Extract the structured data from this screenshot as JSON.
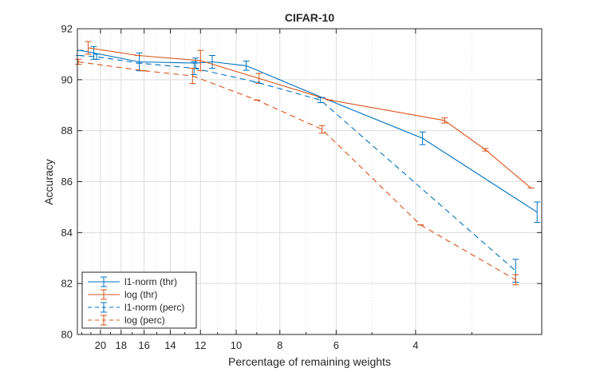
{
  "chart_data": {
    "type": "line",
    "title": "CIFAR-10",
    "xlabel": "Percentage of remaining weights",
    "ylabel": "Accuracy",
    "x_scale": "log",
    "x_reversed": true,
    "xlim": [
      2.1,
      22.5
    ],
    "ylim": [
      80,
      92
    ],
    "x_ticks": [
      20,
      18,
      16,
      14,
      12,
      10,
      8,
      6,
      4
    ],
    "x_tick_labels": [
      "20",
      "18",
      "16",
      "14",
      "12",
      "10",
      "8",
      "6",
      "4"
    ],
    "x_minor_ticks": [
      22,
      21,
      19,
      17,
      15,
      13,
      11,
      9,
      7,
      5,
      3
    ],
    "y_ticks": [
      80,
      82,
      84,
      86,
      88,
      90,
      92
    ],
    "y_tick_labels": [
      "80",
      "82",
      "84",
      "86",
      "88",
      "90",
      "92"
    ],
    "grid": true,
    "legend_position": "bottom-left",
    "series": [
      {
        "name": "l1-norm (thr)",
        "color": "#0072BD",
        "dash": "solid",
        "points": [
          {
            "x": 22.2,
            "y": 91.15,
            "err": 0.0
          },
          {
            "x": 20.7,
            "y": 91.05,
            "err": 0.25
          },
          {
            "x": 16.4,
            "y": 90.7,
            "err": 0.35
          },
          {
            "x": 12.3,
            "y": 90.65,
            "err": 0.2
          },
          {
            "x": 11.3,
            "y": 90.7,
            "err": 0.25
          },
          {
            "x": 9.5,
            "y": 90.55,
            "err": 0.18
          },
          {
            "x": 6.45,
            "y": 89.3,
            "err": 0.0
          },
          {
            "x": 3.86,
            "y": 87.7,
            "err": 0.25
          },
          {
            "x": 2.15,
            "y": 84.8,
            "err": 0.4
          }
        ]
      },
      {
        "name": "log (thr)",
        "color": "#D95319",
        "dash": "solid",
        "points": [
          {
            "x": 21.3,
            "y": 91.25,
            "err": 0.25
          },
          {
            "x": 16.5,
            "y": 90.95,
            "err": 0.0
          },
          {
            "x": 12.0,
            "y": 90.75,
            "err": 0.4
          },
          {
            "x": 8.9,
            "y": 90.05,
            "err": 0.2
          },
          {
            "x": 6.2,
            "y": 89.2,
            "err": 0.0
          },
          {
            "x": 3.45,
            "y": 88.4,
            "err": 0.1
          },
          {
            "x": 2.8,
            "y": 87.25,
            "err": 0.05
          },
          {
            "x": 2.22,
            "y": 85.75,
            "err": 0.0
          }
        ]
      },
      {
        "name": "l1-norm (perc)",
        "color": "#0072BD",
        "dash": "dashed",
        "points": [
          {
            "x": 22.3,
            "y": 90.95,
            "err": 0.0
          },
          {
            "x": 20.4,
            "y": 90.9,
            "err": 0.1
          },
          {
            "x": 16.4,
            "y": 90.65,
            "err": 0.0
          },
          {
            "x": 12.4,
            "y": 90.45,
            "err": 0.25
          },
          {
            "x": 9.0,
            "y": 89.9,
            "err": 0.0
          },
          {
            "x": 6.5,
            "y": 89.2,
            "err": 0.1
          },
          {
            "x": 2.4,
            "y": 82.5,
            "err": 0.45
          }
        ]
      },
      {
        "name": "log (perc)",
        "color": "#D95319",
        "dash": "dashed",
        "points": [
          {
            "x": 22.4,
            "y": 90.7,
            "err": 0.1
          },
          {
            "x": 16.0,
            "y": 90.35,
            "err": 0.0
          },
          {
            "x": 12.5,
            "y": 90.15,
            "err": 0.3
          },
          {
            "x": 9.0,
            "y": 89.2,
            "err": 0.0
          },
          {
            "x": 6.45,
            "y": 88.05,
            "err": 0.15
          },
          {
            "x": 3.9,
            "y": 84.3,
            "err": 0.0
          },
          {
            "x": 2.4,
            "y": 82.15,
            "err": 0.2
          }
        ]
      }
    ]
  }
}
